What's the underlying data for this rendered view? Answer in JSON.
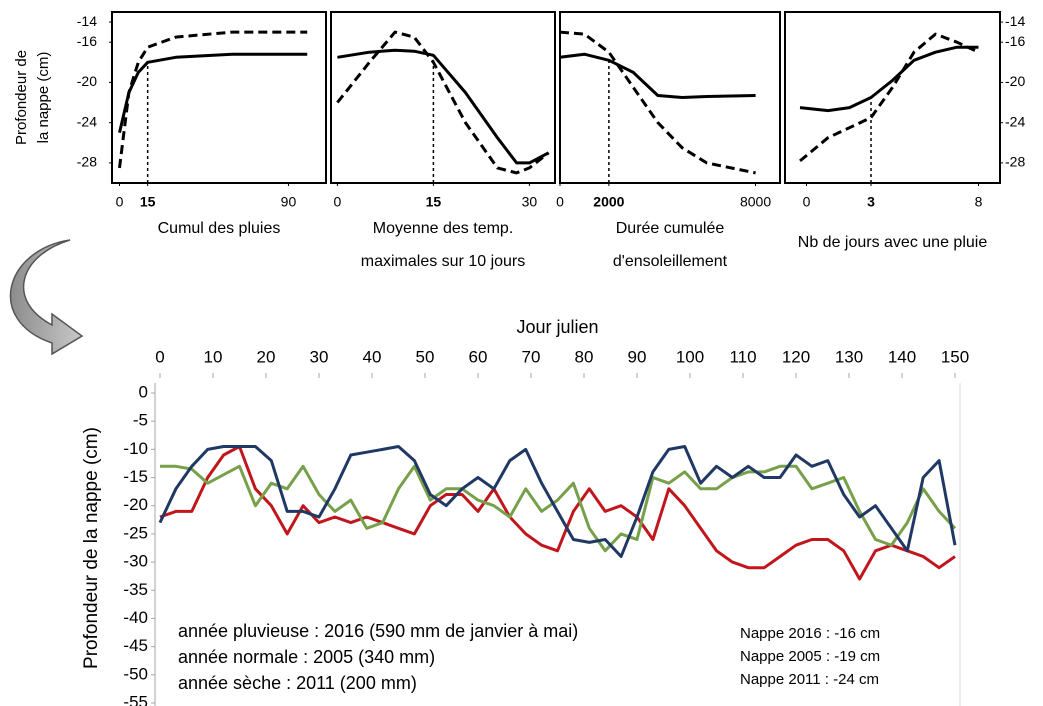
{
  "chart_data": [
    {
      "type": "line",
      "ylabel": [
        "Profondeur de",
        "la nappe (cm)"
      ],
      "xlabel": [
        "Cumul des pluies"
      ],
      "xlim": [
        -4,
        110
      ],
      "xticks": [
        0,
        15,
        90
      ],
      "ylim": [
        -30,
        -13
      ],
      "yticks": [
        -14,
        -16,
        -20,
        -24,
        -28
      ],
      "yaxis_side": "left",
      "vline": 15,
      "x": [
        0,
        5,
        10,
        15,
        30,
        60,
        100
      ],
      "series": [
        {
          "color": "#000000",
          "dash": false,
          "values": [
            -25,
            -21,
            -19,
            -18,
            -17.5,
            -17.2,
            -17.2
          ]
        },
        {
          "color": "#000000",
          "dash": true,
          "values": [
            -28.5,
            -21,
            -18,
            -16.5,
            -15.5,
            -15,
            -15
          ]
        }
      ]
    },
    {
      "type": "line",
      "xlabel": [
        "Moyenne des temp.",
        "maximales  sur 10 jours"
      ],
      "xlim": [
        -1,
        34
      ],
      "xticks": [
        0,
        15,
        30
      ],
      "ylim": [
        -30,
        -13
      ],
      "vline": 15,
      "x": [
        0,
        5,
        9,
        12,
        15,
        20,
        25,
        28,
        30,
        33
      ],
      "series": [
        {
          "color": "#000000",
          "dash": false,
          "values": [
            -17.5,
            -17,
            -16.8,
            -16.9,
            -17.3,
            -21,
            -25.5,
            -28,
            -28,
            -27
          ]
        },
        {
          "color": "#000000",
          "dash": true,
          "values": [
            -22,
            -18,
            -15,
            -15.5,
            -18,
            -24,
            -28.5,
            -29,
            -28.5,
            -27
          ]
        }
      ]
    },
    {
      "type": "line",
      "xlabel": [
        "Durée cumulée",
        "d'ensoleillement"
      ],
      "xlim": [
        0,
        9000
      ],
      "xticks": [
        0,
        {
          "value": 2000,
          "label": "2000"
        },
        {
          "value": 8000,
          "label": "8000"
        }
      ],
      "ylim": [
        -30,
        -13
      ],
      "vline": 2000,
      "x": [
        0,
        1000,
        2000,
        3000,
        4000,
        5000,
        6000,
        8000
      ],
      "series": [
        {
          "color": "#000000",
          "dash": false,
          "values": [
            -17.5,
            -17.2,
            -17.8,
            -19,
            -21.3,
            -21.5,
            -21.4,
            -21.3
          ]
        },
        {
          "color": "#000000",
          "dash": true,
          "values": [
            -15,
            -15.2,
            -17,
            -20.5,
            -24,
            -26.5,
            -28,
            -29
          ]
        }
      ]
    },
    {
      "type": "line",
      "xlabel": [
        "Nb de jours avec une pluie"
      ],
      "xlim": [
        -1,
        9
      ],
      "xticks": [
        0,
        3,
        8
      ],
      "ylim": [
        -30,
        -13
      ],
      "yticks": [
        -14,
        -16,
        -20,
        -24,
        -28
      ],
      "yaxis_side": "right",
      "vline": 3,
      "x": [
        -0.3,
        1,
        2,
        3,
        4,
        5,
        6,
        7,
        8
      ],
      "series": [
        {
          "color": "#000000",
          "dash": false,
          "values": [
            -22.5,
            -22.8,
            -22.5,
            -21.5,
            -19.8,
            -17.8,
            -17,
            -16.5,
            -16.5
          ]
        },
        {
          "color": "#000000",
          "dash": true,
          "values": [
            -27.8,
            -25.5,
            -24.5,
            -23.5,
            -20.5,
            -17,
            -15.2,
            -16,
            -17
          ]
        }
      ]
    },
    {
      "type": "line",
      "xlabel": [
        "Jour julien"
      ],
      "ylabel": [
        "Profondeur  de la nappe (cm)"
      ],
      "xaxis_side": "top",
      "xlim": [
        0,
        150
      ],
      "xticks": [
        0,
        10,
        20,
        30,
        40,
        50,
        60,
        70,
        80,
        90,
        100,
        110,
        120,
        130,
        140,
        150
      ],
      "ylim": [
        -55,
        0
      ],
      "yticks": [
        0,
        -5,
        -10,
        -15,
        -20,
        -25,
        -30,
        -35,
        -40,
        -45,
        -50,
        -55
      ],
      "x": [
        0,
        3,
        6,
        9,
        12,
        15,
        18,
        21,
        24,
        27,
        30,
        33,
        36,
        39,
        42,
        45,
        48,
        51,
        54,
        57,
        60,
        63,
        66,
        69,
        72,
        75,
        78,
        81,
        84,
        87,
        90,
        93,
        96,
        99,
        102,
        105,
        108,
        111,
        114,
        117,
        120,
        123,
        126,
        129,
        132,
        135,
        138,
        141,
        144,
        147,
        150
      ],
      "series": [
        {
          "color": "#c0161c",
          "dash": false,
          "values": [
            -22,
            -21,
            -21,
            -15,
            -11,
            -9.5,
            -17,
            -20,
            -25,
            -20,
            -23,
            -22,
            -23,
            -22,
            -23,
            -24,
            -25,
            -20,
            -18,
            -18,
            -21,
            -17,
            -22,
            -25,
            -27,
            -28,
            -21,
            -17,
            -21,
            -20,
            -22,
            -26,
            -17,
            -20,
            -24,
            -28,
            -30,
            -31,
            -31,
            -29,
            -27,
            -26,
            -26,
            -28,
            -33,
            -28,
            -27,
            -28,
            -29,
            -31,
            -29
          ]
        },
        {
          "color": "#77a04a",
          "dash": false,
          "values": [
            -13,
            -13,
            -13.5,
            -16,
            -14.5,
            -13,
            -20,
            -16,
            -17,
            -13,
            -18,
            -21,
            -19,
            -24,
            -23,
            -17,
            -13,
            -19,
            -17,
            -17,
            -19,
            -20,
            -22,
            -17,
            -21,
            -19,
            -16,
            -24,
            -28,
            -25,
            -26,
            -15,
            -16,
            -14,
            -17,
            -17,
            -15,
            -14,
            -14,
            -13,
            -13,
            -17,
            -16,
            -15,
            -21,
            -26,
            -27,
            -23,
            -17,
            -21,
            -24
          ]
        },
        {
          "color": "#203864",
          "dash": false,
          "values": [
            -23,
            -17,
            -13,
            -10,
            -9.5,
            -9.5,
            -9.5,
            -12,
            -21,
            -21,
            -22,
            -17,
            -11,
            -10.5,
            -10,
            -9.5,
            -12,
            -18,
            -20,
            -17,
            -15,
            -17,
            -12,
            -10,
            -16,
            -21,
            -26,
            -26.5,
            -26,
            -29,
            -22,
            -14,
            -10,
            -9.5,
            -16,
            -13,
            -15,
            -13,
            -15,
            -15,
            -11,
            -13,
            -12,
            -18,
            -22,
            -20,
            -24,
            -28,
            -15,
            -12,
            -27
          ]
        }
      ],
      "annotations": [
        {
          "text": "année pluvieuse : 2016 (590 mm de janvier à mai)",
          "color": "#000000"
        },
        {
          "text": "année normale : 2005 (340 mm)",
          "color": "#77a04a"
        },
        {
          "text": "année sèche : 2011 (200 mm)",
          "color": "#c0161c"
        },
        {
          "text": "Nappe 2016 : -16  cm",
          "color": "#000000"
        },
        {
          "text": "Nappe 2005 : -19  cm",
          "color": "#77a04a"
        },
        {
          "text": "Nappe 2011 : -24  cm",
          "color": "#c0161c"
        }
      ]
    }
  ]
}
